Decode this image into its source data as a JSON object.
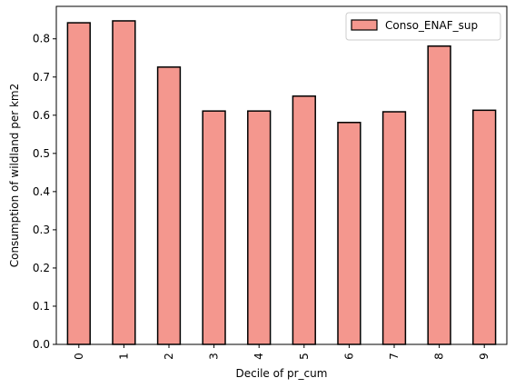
{
  "chart_data": {
    "type": "bar",
    "categories": [
      "0",
      "1",
      "2",
      "3",
      "4",
      "5",
      "6",
      "7",
      "8",
      "9"
    ],
    "series": [
      {
        "name": "Conso_ENAF_sup",
        "values": [
          0.842,
          0.847,
          0.726,
          0.611,
          0.611,
          0.65,
          0.581,
          0.609,
          0.781,
          0.613
        ]
      }
    ],
    "xlabel": "Decile of pr_cum",
    "ylabel": "Consumption of wildland per km2",
    "ylim": [
      0,
      0.885
    ],
    "yticks": [
      0.0,
      0.1,
      0.2,
      0.3,
      0.4,
      0.5,
      0.6,
      0.7,
      0.8
    ],
    "ytick_labels": [
      "0.0",
      "0.1",
      "0.2",
      "0.3",
      "0.4",
      "0.5",
      "0.6",
      "0.7",
      "0.8"
    ],
    "grid": false,
    "legend_position": "top-right",
    "bar_color": "#f4978e",
    "edge_color": "#000000"
  }
}
